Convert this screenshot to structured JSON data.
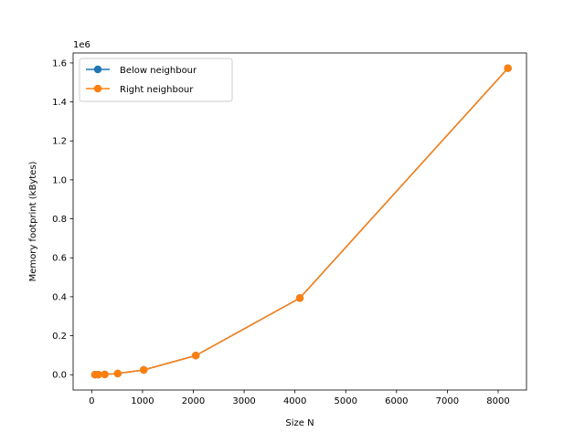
{
  "chart_data": {
    "type": "line",
    "xlabel": "Size N",
    "ylabel": "Memory footprint (kBytes)",
    "y_offset_label": "1e6",
    "xlim": [
      -366,
      8558
    ],
    "ylim": [
      -0.0786,
      1.6512
    ],
    "y_scale_factor": 1000000,
    "x_ticks": [
      0,
      1000,
      2000,
      3000,
      4000,
      5000,
      6000,
      7000,
      8000
    ],
    "x_tick_labels": [
      "0",
      "1000",
      "2000",
      "3000",
      "4000",
      "5000",
      "6000",
      "7000",
      "8000"
    ],
    "y_ticks": [
      0.0,
      0.2,
      0.4,
      0.6,
      0.8,
      1.0,
      1.2,
      1.4,
      1.6
    ],
    "y_tick_labels": [
      "0.0",
      "0.2",
      "0.4",
      "0.6",
      "0.8",
      "1.0",
      "1.2",
      "1.4",
      "1.6"
    ],
    "grid": false,
    "legend_position": "top-left",
    "series": [
      {
        "name": "Below neighbour",
        "color": "#1f77b4",
        "marker": "circle",
        "x": [
          64,
          128,
          256,
          512,
          1024,
          2048,
          4096,
          8192
        ],
        "y": [
          96,
          384,
          1536,
          6144,
          24576,
          98304,
          393216,
          1572864
        ]
      },
      {
        "name": "Right neighbour",
        "color": "#ff7f0e",
        "marker": "circle",
        "x": [
          64,
          128,
          256,
          512,
          1024,
          2048,
          4096,
          8192
        ],
        "y": [
          96,
          384,
          1536,
          6144,
          24576,
          98304,
          393216,
          1572864
        ]
      }
    ]
  }
}
